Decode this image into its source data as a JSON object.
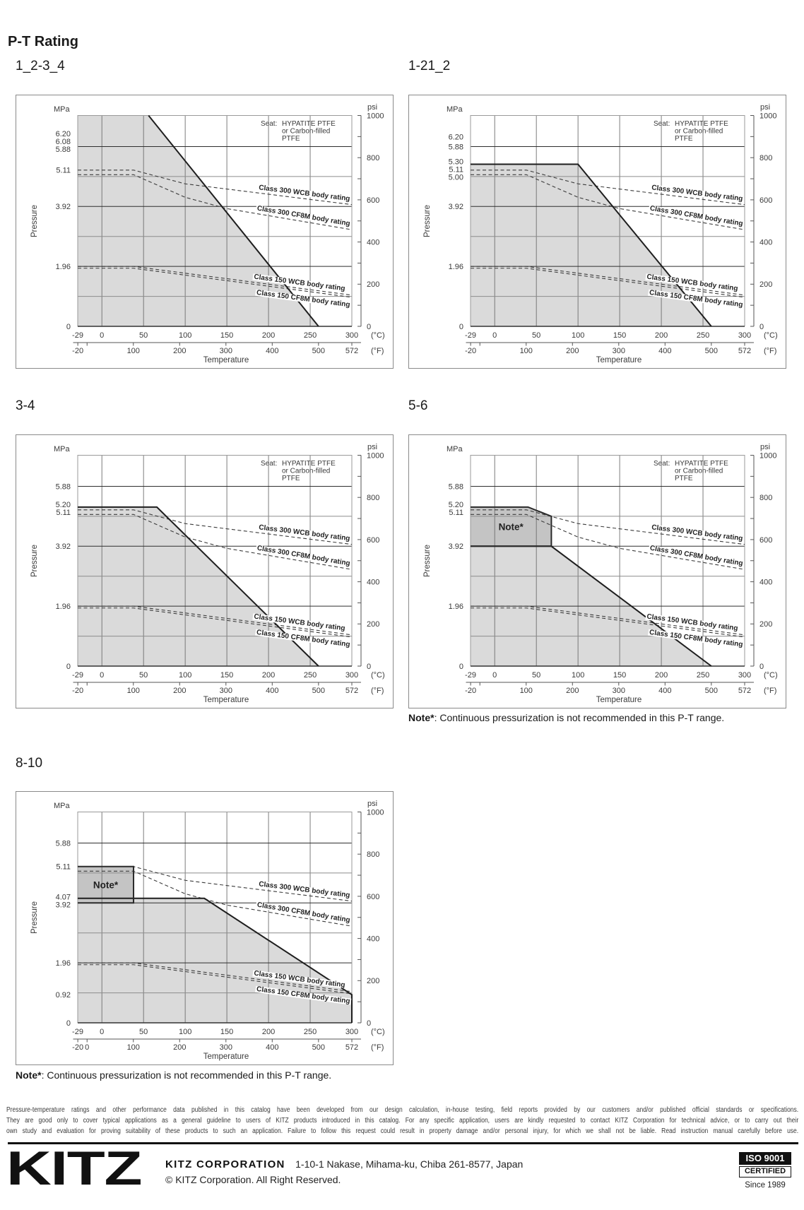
{
  "page": {
    "title": "P-T Rating"
  },
  "axes": {
    "y_unit_left": "MPa",
    "y_unit_right": "psi",
    "x_unit_primary": "(°C)",
    "x_unit_secondary": "(°F)"
  },
  "note": {
    "marker": "Note*",
    "text": ": Continuous pressurization is not recommended in this P-T range."
  },
  "chart_data": [
    {
      "title": "1_2-3_4",
      "type": "area",
      "xlabel": "Temperature",
      "ylabel": "Pressure",
      "x_unit": "°C",
      "x2_unit": "°F",
      "y_unit": "MPa",
      "y2_unit": "psi",
      "xlim": [
        -29,
        300
      ],
      "ylim": [
        0,
        6.895
      ],
      "y2lim": [
        0,
        1000
      ],
      "grid": true,
      "x_ticks": [
        "-29",
        "0",
        "50",
        "100",
        "150",
        "200",
        "250",
        "300"
      ],
      "x2_ticks": [
        -20,
        0,
        100,
        200,
        300,
        400,
        500,
        572
      ],
      "x2_tick_labels": [
        "-20",
        "",
        "100",
        "200",
        "300",
        "400",
        "500",
        "572"
      ],
      "y_ticks": [
        "6.20",
        "6.08",
        "5.88",
        "5.11",
        "3.92",
        "1.96",
        "0"
      ],
      "y2_ticks": [
        "0",
        "200",
        "400",
        "600",
        "800",
        "1000"
      ],
      "y2_minor_ticks": [
        100,
        300,
        500,
        700,
        900
      ],
      "x_grid": [
        0,
        50,
        100,
        150,
        200,
        250
      ],
      "y_grid_major": [
        1.96,
        3.92,
        5.88
      ],
      "y_grid_minor": [
        0.98,
        2.94,
        4.9
      ],
      "seat_note": {
        "label": "Seat:",
        "lines": [
          "HYPATITE PTFE",
          "or Carbon-filled",
          "PTFE"
        ]
      },
      "seat_rating": {
        "name": "Seat rating",
        "points": [
          [
            -29,
            6.895
          ],
          [
            56,
            6.895
          ],
          [
            260,
            0
          ]
        ]
      },
      "note_region": null,
      "series": [
        {
          "name": "Class 300 WCB body rating",
          "points": [
            [
              -29,
              5.11
            ],
            [
              38,
              5.11
            ],
            [
              100,
              4.66
            ],
            [
              300,
              3.98
            ]
          ]
        },
        {
          "name": "Class 300 CF8M body rating",
          "points": [
            [
              -29,
              4.96
            ],
            [
              38,
              4.96
            ],
            [
              100,
              4.22
            ],
            [
              150,
              3.85
            ],
            [
              300,
              3.16
            ]
          ]
        },
        {
          "name": "Class 150 WCB body rating",
          "points": [
            [
              -29,
              1.96
            ],
            [
              38,
              1.96
            ],
            [
              300,
              1.02
            ]
          ]
        },
        {
          "name": "Class 150 CF8M body rating",
          "points": [
            [
              -29,
              1.9
            ],
            [
              38,
              1.9
            ],
            [
              300,
              0.95
            ]
          ]
        }
      ]
    },
    {
      "title": "1-21_2",
      "type": "area",
      "xlabel": "Temperature",
      "ylabel": "Pressure",
      "x_unit": "°C",
      "x2_unit": "°F",
      "y_unit": "MPa",
      "y2_unit": "psi",
      "xlim": [
        -29,
        300
      ],
      "ylim": [
        0,
        6.895
      ],
      "y2lim": [
        0,
        1000
      ],
      "grid": true,
      "x_ticks": [
        "-29",
        "0",
        "50",
        "100",
        "150",
        "200",
        "250",
        "300"
      ],
      "x2_ticks": [
        -20,
        0,
        100,
        200,
        300,
        400,
        500,
        572
      ],
      "x2_tick_labels": [
        "-20",
        "",
        "100",
        "200",
        "300",
        "400",
        "500",
        "572"
      ],
      "y_ticks": [
        "6.20",
        "5.88",
        "5.30",
        "5.11",
        "5.00",
        "3.92",
        "1.96",
        "0"
      ],
      "y2_ticks": [
        "0",
        "200",
        "400",
        "600",
        "800",
        "1000"
      ],
      "y2_minor_ticks": [
        100,
        300,
        500,
        700,
        900
      ],
      "x_grid": [
        0,
        50,
        100,
        150,
        200,
        250
      ],
      "y_grid_major": [
        1.96,
        3.92,
        5.88
      ],
      "y_grid_minor": [
        0.98,
        2.94,
        4.9
      ],
      "seat_note": {
        "label": "Seat:",
        "lines": [
          "HYPATITE PTFE",
          "or Carbon-filled",
          "PTFE"
        ]
      },
      "seat_rating": {
        "name": "Seat rating",
        "points": [
          [
            -29,
            5.3
          ],
          [
            100,
            5.3
          ],
          [
            260,
            0
          ]
        ]
      },
      "note_region": null,
      "series": [
        {
          "name": "Class 300 WCB body rating",
          "points": [
            [
              -29,
              5.11
            ],
            [
              38,
              5.11
            ],
            [
              100,
              4.66
            ],
            [
              300,
              3.98
            ]
          ]
        },
        {
          "name": "Class 300 CF8M body rating",
          "points": [
            [
              -29,
              4.96
            ],
            [
              38,
              4.96
            ],
            [
              100,
              4.22
            ],
            [
              150,
              3.85
            ],
            [
              300,
              3.16
            ]
          ]
        },
        {
          "name": "Class 150 WCB body rating",
          "points": [
            [
              -29,
              1.96
            ],
            [
              38,
              1.96
            ],
            [
              300,
              1.02
            ]
          ]
        },
        {
          "name": "Class 150 CF8M body rating",
          "points": [
            [
              -29,
              1.9
            ],
            [
              38,
              1.9
            ],
            [
              300,
              0.95
            ]
          ]
        }
      ]
    },
    {
      "title": "3-4",
      "type": "area",
      "xlabel": "Temperature",
      "ylabel": "Pressure",
      "x_unit": "°C",
      "x2_unit": "°F",
      "y_unit": "MPa",
      "y2_unit": "psi",
      "xlim": [
        -29,
        300
      ],
      "ylim": [
        0,
        6.895
      ],
      "y2lim": [
        0,
        1000
      ],
      "grid": true,
      "x_ticks": [
        "-29",
        "0",
        "50",
        "100",
        "150",
        "200",
        "250",
        "300"
      ],
      "x2_ticks": [
        -20,
        0,
        100,
        200,
        300,
        400,
        500,
        572
      ],
      "x2_tick_labels": [
        "-20",
        "",
        "100",
        "200",
        "300",
        "400",
        "500",
        "572"
      ],
      "y_ticks": [
        "5.88",
        "5.20",
        "5.11",
        "3.92",
        "1.96",
        "0"
      ],
      "y2_ticks": [
        "0",
        "200",
        "400",
        "600",
        "800",
        "1000"
      ],
      "y2_minor_ticks": [
        100,
        300,
        500,
        700,
        900
      ],
      "x_grid": [
        0,
        50,
        100,
        150,
        200,
        250
      ],
      "y_grid_major": [
        1.96,
        3.92,
        5.88
      ],
      "y_grid_minor": [
        0.98,
        2.94,
        4.9
      ],
      "seat_note": {
        "label": "Seat:",
        "lines": [
          "HYPATITE PTFE",
          "or Carbon-filled",
          "PTFE"
        ]
      },
      "seat_rating": {
        "name": "Seat rating",
        "points": [
          [
            -29,
            5.2
          ],
          [
            66,
            5.2
          ],
          [
            260,
            0
          ]
        ]
      },
      "note_region": null,
      "series": [
        {
          "name": "Class 300 WCB body rating",
          "points": [
            [
              -29,
              5.11
            ],
            [
              38,
              5.11
            ],
            [
              100,
              4.66
            ],
            [
              300,
              3.98
            ]
          ]
        },
        {
          "name": "Class 300 CF8M body rating",
          "points": [
            [
              -29,
              4.96
            ],
            [
              38,
              4.96
            ],
            [
              100,
              4.22
            ],
            [
              150,
              3.85
            ],
            [
              300,
              3.16
            ]
          ]
        },
        {
          "name": "Class 150 WCB body rating",
          "points": [
            [
              -29,
              1.96
            ],
            [
              38,
              1.96
            ],
            [
              300,
              1.02
            ]
          ]
        },
        {
          "name": "Class 150 CF8M body rating",
          "points": [
            [
              -29,
              1.9
            ],
            [
              38,
              1.9
            ],
            [
              300,
              0.95
            ]
          ]
        }
      ]
    },
    {
      "title": "5-6",
      "type": "area",
      "xlabel": "Temperature",
      "ylabel": "Pressure",
      "x_unit": "°C",
      "x2_unit": "°F",
      "y_unit": "MPa",
      "y2_unit": "psi",
      "xlim": [
        -29,
        300
      ],
      "ylim": [
        0,
        6.895
      ],
      "y2lim": [
        0,
        1000
      ],
      "grid": true,
      "x_ticks": [
        "-29",
        "0",
        "50",
        "100",
        "150",
        "200",
        "250",
        "300"
      ],
      "x2_ticks": [
        -20,
        0,
        100,
        200,
        300,
        400,
        500,
        572
      ],
      "x2_tick_labels": [
        "-20",
        "",
        "100",
        "200",
        "300",
        "400",
        "500",
        "572"
      ],
      "y_ticks": [
        "5.88",
        "5.20",
        "5.11",
        "3.92",
        "1.96",
        "0"
      ],
      "y2_ticks": [
        "0",
        "200",
        "400",
        "600",
        "800",
        "1000"
      ],
      "y2_minor_ticks": [
        100,
        300,
        500,
        700,
        900
      ],
      "x_grid": [
        0,
        50,
        100,
        150,
        200,
        250
      ],
      "y_grid_major": [
        1.96,
        3.92,
        5.88
      ],
      "y_grid_minor": [
        0.98,
        2.94,
        4.9
      ],
      "seat_note": {
        "label": "Seat:",
        "lines": [
          "HYPATITE PTFE",
          "or Carbon-filled",
          "PTFE"
        ]
      },
      "seat_rating": {
        "name": "Seat rating",
        "points": [
          [
            -29,
            3.92
          ],
          [
            68,
            3.92
          ],
          [
            260,
            0
          ]
        ]
      },
      "note_region": {
        "label": "Note*",
        "points": [
          [
            -29,
            5.2
          ],
          [
            40,
            5.2
          ],
          [
            68,
            4.9
          ],
          [
            68,
            3.92
          ],
          [
            -29,
            3.92
          ]
        ]
      },
      "series": [
        {
          "name": "Class 300 WCB body rating",
          "points": [
            [
              -29,
              5.11
            ],
            [
              38,
              5.11
            ],
            [
              100,
              4.66
            ],
            [
              300,
              3.98
            ]
          ]
        },
        {
          "name": "Class 300 CF8M body rating",
          "points": [
            [
              -29,
              4.96
            ],
            [
              38,
              4.96
            ],
            [
              100,
              4.22
            ],
            [
              150,
              3.85
            ],
            [
              300,
              3.16
            ]
          ]
        },
        {
          "name": "Class 150 WCB body rating",
          "points": [
            [
              -29,
              1.96
            ],
            [
              38,
              1.96
            ],
            [
              300,
              1.02
            ]
          ]
        },
        {
          "name": "Class 150 CF8M body rating",
          "points": [
            [
              -29,
              1.9
            ],
            [
              38,
              1.9
            ],
            [
              300,
              0.95
            ]
          ]
        }
      ]
    },
    {
      "title": "8-10",
      "type": "area",
      "xlabel": "Temperature",
      "ylabel": "Pressure",
      "x_unit": "°C",
      "x2_unit": "°F",
      "y_unit": "MPa",
      "y2_unit": "psi",
      "xlim": [
        -29,
        300
      ],
      "ylim": [
        0,
        6.895
      ],
      "y2lim": [
        0,
        1000
      ],
      "grid": true,
      "x_ticks": [
        "-29",
        "0",
        "50",
        "100",
        "150",
        "200",
        "250",
        "300"
      ],
      "x2_ticks": [
        -20,
        0,
        100,
        200,
        300,
        400,
        500,
        572
      ],
      "x2_tick_labels": [
        "-20",
        "0",
        "100",
        "200",
        "300",
        "400",
        "500",
        "572"
      ],
      "y_ticks": [
        "5.88",
        "5.11",
        "4.07",
        "3.92",
        "1.96",
        "0.92",
        "0"
      ],
      "y2_ticks": [
        "0",
        "200",
        "400",
        "600",
        "800",
        "1000"
      ],
      "y2_minor_ticks": [
        100,
        300,
        500,
        700,
        900
      ],
      "x_grid": [
        0,
        50,
        100,
        150,
        200,
        250
      ],
      "y_grid_major": [
        1.96,
        3.92,
        5.88
      ],
      "y_grid_minor": [
        0.98,
        2.94,
        4.9
      ],
      "seat_note": null,
      "seat_rating": {
        "name": "Seat rating",
        "points": [
          [
            -29,
            4.07
          ],
          [
            123,
            4.07
          ],
          [
            300,
            0.92
          ],
          [
            300,
            0
          ]
        ]
      },
      "note_region": {
        "label": "Note*",
        "points": [
          [
            -29,
            5.11
          ],
          [
            38,
            5.11
          ],
          [
            38,
            3.92
          ],
          [
            -29,
            3.92
          ]
        ]
      },
      "series": [
        {
          "name": "Class 300 WCB body rating",
          "points": [
            [
              -29,
              5.11
            ],
            [
              38,
              5.11
            ],
            [
              100,
              4.66
            ],
            [
              300,
              3.98
            ]
          ]
        },
        {
          "name": "Class 300 CF8M body rating",
          "points": [
            [
              -29,
              4.96
            ],
            [
              38,
              4.96
            ],
            [
              100,
              4.22
            ],
            [
              150,
              3.85
            ],
            [
              300,
              3.16
            ]
          ]
        },
        {
          "name": "Class 150 WCB body rating",
          "points": [
            [
              -29,
              1.96
            ],
            [
              38,
              1.96
            ],
            [
              300,
              1.02
            ]
          ]
        },
        {
          "name": "Class 150 CF8M body rating",
          "points": [
            [
              -29,
              1.9
            ],
            [
              38,
              1.9
            ],
            [
              300,
              0.95
            ]
          ]
        }
      ]
    }
  ],
  "disclaimer": {
    "lines": [
      "Pressure-temperature ratings and other performance data published in this catalog have been developed from our design calculation, in-house testing, field reports provided by our customers and/or published official standards or specifications.",
      "They are good only to cover typical applications as a general guideline to users of KITZ products introduced in this catalog.  For any specific application, users are kindly requested to contact KITZ Corporation for technical advice, or to carry out their",
      "own study and evaluation for proving suitability of these products to such an application. Failure to follow this request could result in property damage and/or personal injury, for which we shall not be liable.  Read instruction manual carefully before use."
    ]
  },
  "footer": {
    "logo": "KITZ",
    "company": "KITZ CORPORATION",
    "address": "1-10-1 Nakase, Mihama-ku, Chiba 261-8577, Japan",
    "copyright": "© KITZ Corporation. All Right Reserved.",
    "iso_badge": {
      "standard": "ISO 9001",
      "status": "CERTIFIED",
      "since": "Since 1989"
    }
  }
}
